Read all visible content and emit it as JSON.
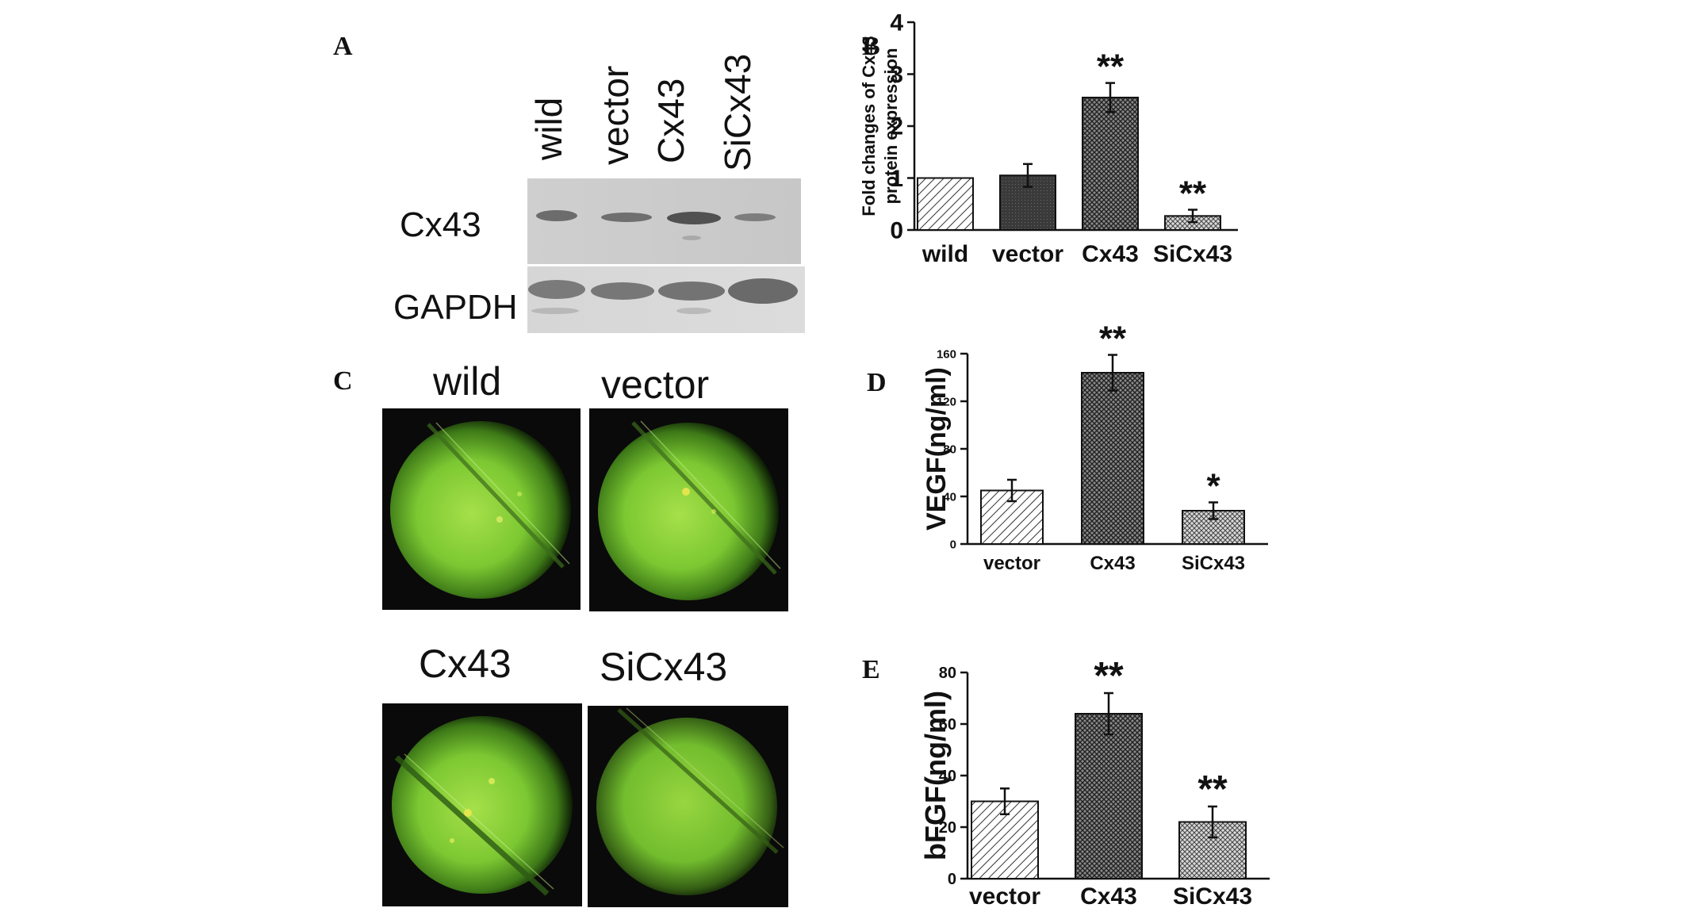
{
  "panels": {
    "A": {
      "letter": "A",
      "lane_labels": [
        "wild",
        "vector",
        "Cx43",
        "SiCx43"
      ],
      "band_labels": [
        "Cx43",
        "GAPDH"
      ]
    },
    "B": {
      "letter": "B"
    },
    "C": {
      "letter": "C",
      "image_labels": [
        "wild",
        "vector",
        "Cx43",
        "SiCx43"
      ]
    },
    "D": {
      "letter": "D"
    },
    "E": {
      "letter": "E"
    }
  },
  "colors": {
    "fluorescence_green": "#8fd23c",
    "bar_dark": "#3a3a3a",
    "bar_light": "#d0d0d0"
  },
  "chart_data": [
    {
      "id": "B",
      "type": "bar",
      "categories": [
        "wild",
        "vector",
        "Cx43",
        "SiCx43"
      ],
      "values": [
        1.0,
        1.05,
        2.55,
        0.27
      ],
      "errors": [
        0.0,
        0.22,
        0.28,
        0.12
      ],
      "significance": [
        "",
        "",
        "**",
        "**"
      ],
      "ylabel": "Fold changes of Cx43 protein expression",
      "ylim": [
        0,
        4
      ],
      "yticks": [
        0,
        1,
        2,
        3,
        4
      ],
      "patterns": [
        "hatch-light",
        "dark",
        "cross-dark",
        "cross-light"
      ]
    },
    {
      "id": "D",
      "type": "bar",
      "categories": [
        "vector",
        "Cx43",
        "SiCx43"
      ],
      "values": [
        45,
        144,
        28
      ],
      "errors": [
        9,
        15,
        7
      ],
      "significance": [
        "",
        "**",
        "*"
      ],
      "ylabel": "VEGF(ng/ml)",
      "ylim": [
        0,
        160
      ],
      "yticks": [
        0,
        40,
        80,
        120,
        160
      ],
      "patterns": [
        "hatch-light",
        "cross-dark",
        "cross-light"
      ]
    },
    {
      "id": "E",
      "type": "bar",
      "categories": [
        "vector",
        "Cx43",
        "SiCx43"
      ],
      "values": [
        30,
        64,
        22
      ],
      "errors": [
        5,
        8,
        6
      ],
      "significance": [
        "",
        "**",
        "**"
      ],
      "ylabel": "bFGF(ng/ml)",
      "ylim": [
        0,
        80
      ],
      "yticks": [
        0,
        20,
        40,
        60,
        80
      ],
      "patterns": [
        "hatch-light",
        "cross-dark",
        "cross-light"
      ]
    }
  ]
}
